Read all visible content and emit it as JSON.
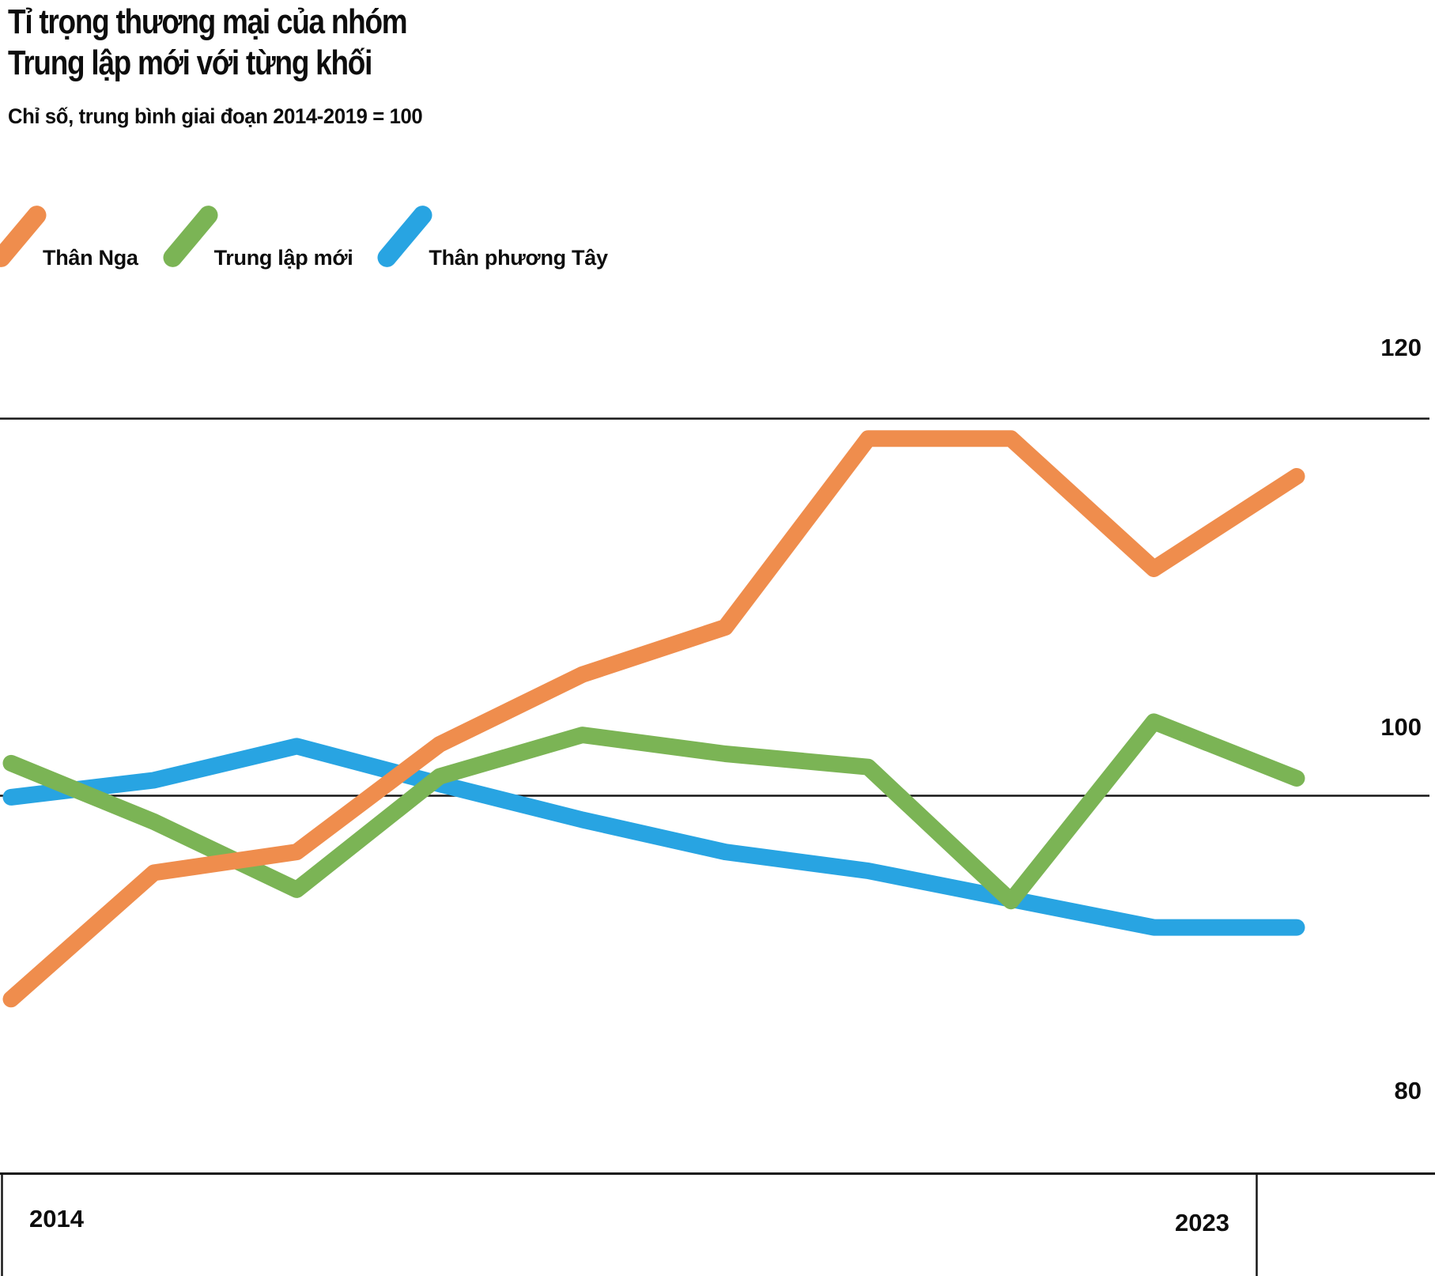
{
  "header": {
    "title_line1": "Tỉ trọng thương mại của nhóm",
    "title_line2": "Trung lập mới với từng khối",
    "subtitle": "Chỉ số, trung bình giai đoạn 2014-2019 = 100"
  },
  "legend": {
    "items": [
      {
        "label": "Thân Nga",
        "color": "#EF8D4D",
        "icon": "diagonal-line-icon"
      },
      {
        "label": "Trung lập mới",
        "color": "#7BB455",
        "icon": "diagonal-line-icon"
      },
      {
        "label": "Thân phương Tây",
        "color": "#28A4E2",
        "icon": "diagonal-line-icon"
      }
    ]
  },
  "chart_data": {
    "type": "line",
    "title": "Tỉ trọng thương mại của nhóm Trung lập mới với từng khối",
    "subtitle": "Chỉ số, trung bình giai đoạn 2014-2019 = 100",
    "x": [
      2014,
      2015,
      2016,
      2017,
      2018,
      2019,
      2020,
      2021,
      2022,
      2023
    ],
    "series": [
      {
        "name": "Thân Nga",
        "color": "#EF8D4D",
        "values": [
          89.2,
          95.9,
          97.0,
          102.7,
          106.4,
          108.9,
          118.9,
          118.9,
          112.0,
          116.9
        ]
      },
      {
        "name": "Trung lập mới",
        "color": "#7BB455",
        "values": [
          101.7,
          98.6,
          95.0,
          101.0,
          103.2,
          102.2,
          101.5,
          94.4,
          103.9,
          100.9
        ]
      },
      {
        "name": "Thân phương Tây",
        "color": "#28A4E2",
        "values": [
          99.9,
          100.8,
          102.6,
          100.6,
          98.7,
          97.0,
          96.0,
          94.5,
          93.0,
          93.0
        ]
      }
    ],
    "xlabel": "",
    "ylabel": "",
    "ylim": [
      78,
      126
    ],
    "yticks": [
      {
        "label": "120",
        "value": 120
      },
      {
        "label": "100",
        "value": 100
      },
      {
        "label": "80",
        "value": 80
      }
    ],
    "xticks": [
      {
        "label": "2014",
        "value": 2014
      },
      {
        "label": "2023",
        "value": 2023
      }
    ],
    "grid": "horizontal-at-yticks",
    "legend_position": "top-left",
    "axis_color": "#161616",
    "baseline_note": "bottom rule doubles as 80 gridline and x-axis; small vertical ticks at far left and near 2023"
  }
}
